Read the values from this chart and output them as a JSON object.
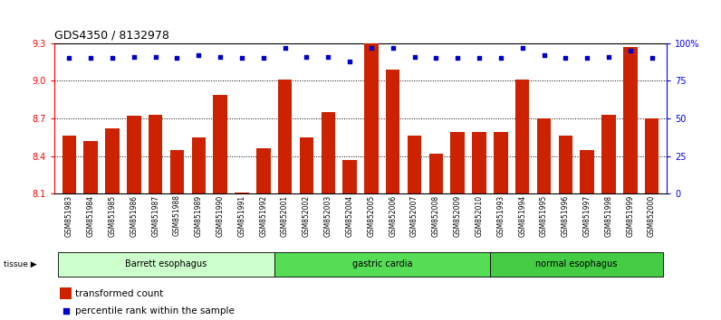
{
  "title": "GDS4350 / 8132978",
  "samples": [
    "GSM851983",
    "GSM851984",
    "GSM851985",
    "GSM851986",
    "GSM851987",
    "GSM851988",
    "GSM851989",
    "GSM851990",
    "GSM851991",
    "GSM851992",
    "GSM852001",
    "GSM852002",
    "GSM852003",
    "GSM852004",
    "GSM852005",
    "GSM852006",
    "GSM852007",
    "GSM852008",
    "GSM852009",
    "GSM852010",
    "GSM851993",
    "GSM851994",
    "GSM851995",
    "GSM851996",
    "GSM851997",
    "GSM851998",
    "GSM851999",
    "GSM852000"
  ],
  "bar_values": [
    8.56,
    8.52,
    8.62,
    8.72,
    8.73,
    8.45,
    8.55,
    8.89,
    8.11,
    8.46,
    9.01,
    8.55,
    8.75,
    8.37,
    9.3,
    9.09,
    8.56,
    8.42,
    8.59,
    8.59,
    8.59,
    9.01,
    8.7,
    8.56,
    8.45,
    8.73,
    9.27,
    8.7
  ],
  "percentile_values": [
    90,
    90,
    90,
    91,
    91,
    90,
    92,
    91,
    90,
    90,
    97,
    91,
    91,
    88,
    97,
    97,
    91,
    90,
    90,
    90,
    90,
    97,
    92,
    90,
    90,
    91,
    95,
    90
  ],
  "groups": [
    {
      "label": "Barrett esophagus",
      "start": 0,
      "end": 10,
      "color": "#ccffcc"
    },
    {
      "label": "gastric cardia",
      "start": 10,
      "end": 20,
      "color": "#55dd55"
    },
    {
      "label": "normal esophagus",
      "start": 20,
      "end": 28,
      "color": "#44cc44"
    }
  ],
  "ylim_left": [
    8.1,
    9.3
  ],
  "ylim_right": [
    0,
    100
  ],
  "yticks_left": [
    8.1,
    8.4,
    8.7,
    9.0,
    9.3
  ],
  "yticks_right": [
    0,
    25,
    50,
    75,
    100
  ],
  "bar_color": "#cc2200",
  "dot_color": "#0000cc",
  "bg_color": "#d0d0d0",
  "tissue_label": "tissue",
  "legend_bar": "transformed count",
  "legend_dot": "percentile rank within the sample"
}
